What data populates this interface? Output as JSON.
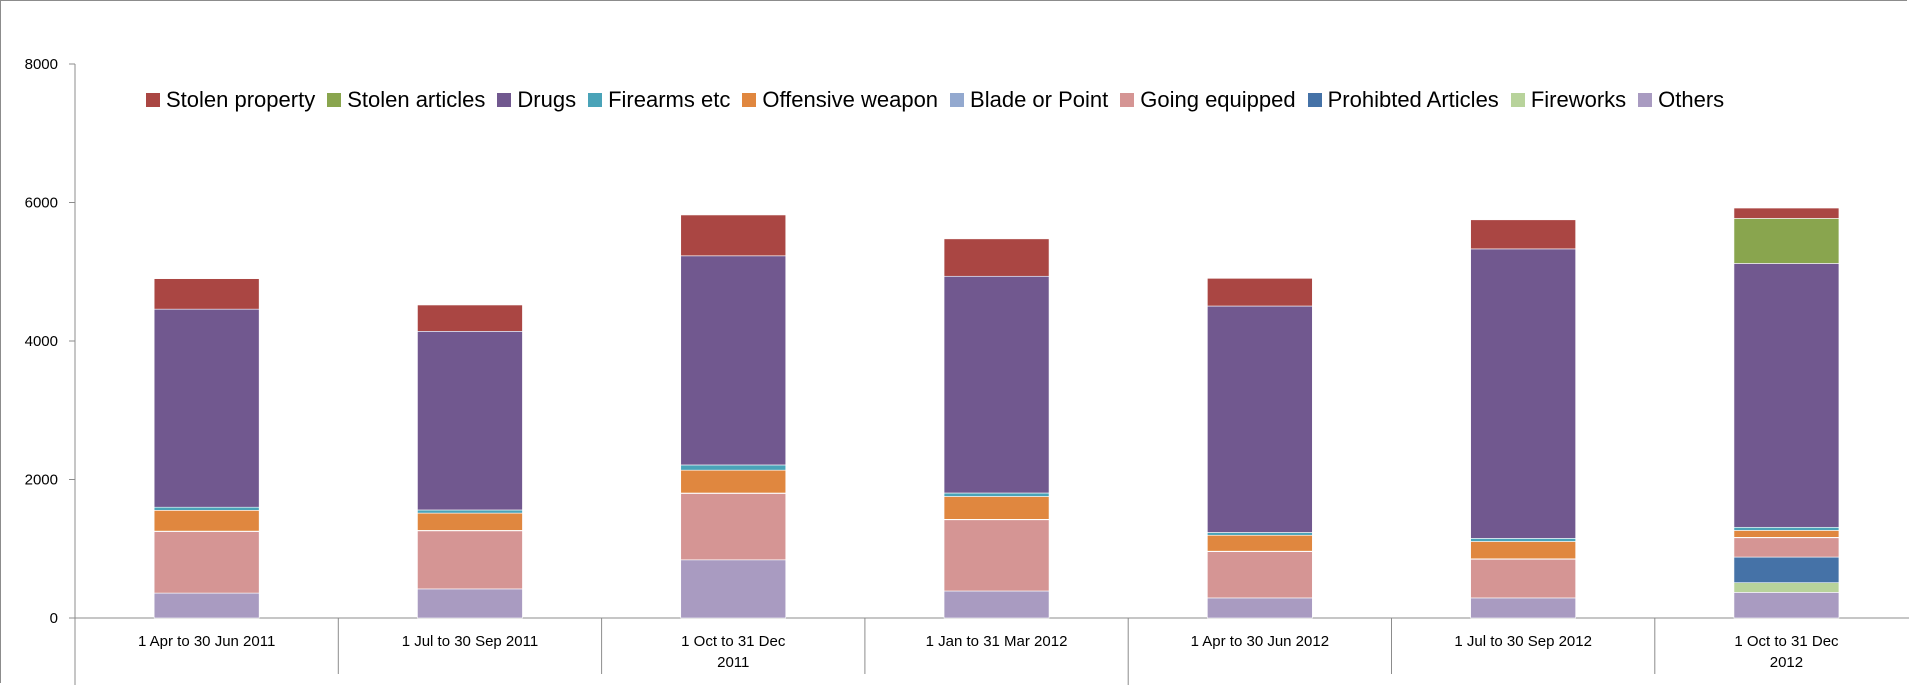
{
  "chart_data": {
    "type": "bar",
    "stacked": true,
    "title": "",
    "xlabel": "",
    "ylabel": "",
    "ylim": [
      0,
      8000
    ],
    "yticks": [
      0,
      2000,
      4000,
      6000,
      8000
    ],
    "grid": false,
    "legend_position": "top",
    "categories": [
      [
        "1 Apr to 30 Jun 2011"
      ],
      [
        "1 Jul to 30 Sep 2011"
      ],
      [
        "1 Oct to 31 Dec",
        "2011"
      ],
      [
        "1 Jan to 31 Mar 2012"
      ],
      [
        "1 Apr to 30 Jun 2012"
      ],
      [
        "1 Jul to 30 Sep 2012"
      ],
      [
        "1 Oct to 31 Dec",
        "2012"
      ]
    ],
    "series": [
      {
        "name": "Others",
        "color": "#a99bc1",
        "values": [
          360,
          420,
          840,
          390,
          290,
          290,
          370
        ]
      },
      {
        "name": "Fireworks",
        "color": "#b8d39b",
        "values": [
          0,
          0,
          0,
          0,
          0,
          0,
          140
        ]
      },
      {
        "name": "Prohibted Articles",
        "color": "#4572a7",
        "values": [
          0,
          0,
          0,
          0,
          0,
          0,
          370
        ]
      },
      {
        "name": "Going equipped",
        "color": "#d59594",
        "values": [
          890,
          840,
          960,
          1030,
          670,
          560,
          280
        ]
      },
      {
        "name": "Blade or Point",
        "color": "#93a9cf",
        "values": [
          5,
          5,
          5,
          5,
          5,
          5,
          5
        ]
      },
      {
        "name": "Offensive weapon",
        "color": "#e0873f",
        "values": [
          300,
          250,
          330,
          330,
          230,
          250,
          100
        ]
      },
      {
        "name": "Firearms etc",
        "color": "#4aa3b8",
        "values": [
          45,
          45,
          75,
          50,
          40,
          45,
          45
        ]
      },
      {
        "name": "Drugs",
        "color": "#71588f",
        "values": [
          2860,
          2580,
          3020,
          3130,
          3270,
          4180,
          3810
        ]
      },
      {
        "name": "Stolen articles",
        "color": "#89a54e",
        "values": [
          0,
          0,
          0,
          0,
          0,
          0,
          650
        ]
      },
      {
        "name": "Stolen property",
        "color": "#aa4643",
        "values": [
          440,
          380,
          590,
          540,
          400,
          420,
          150
        ]
      }
    ],
    "legend_order": [
      "Stolen property",
      "Stolen articles",
      "Drugs",
      "Firearms etc",
      "Offensive weapon",
      "Blade or Point",
      "Going equipped",
      "Prohibted Articles",
      "Fireworks",
      "Others"
    ]
  }
}
